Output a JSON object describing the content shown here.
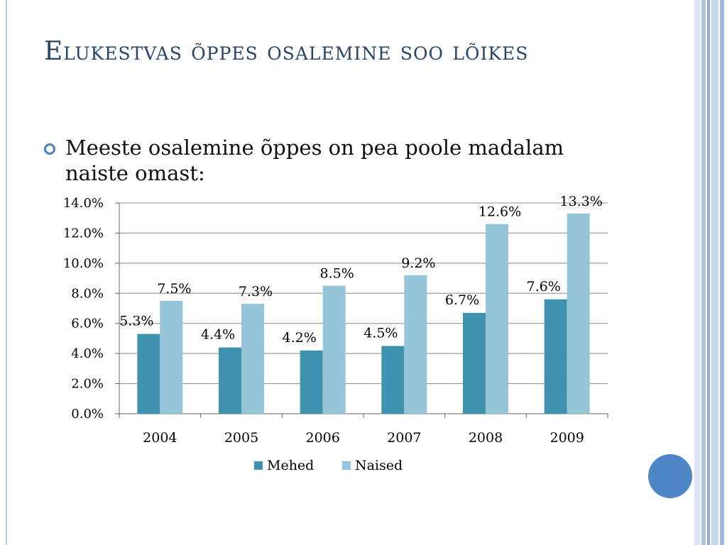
{
  "slide": {
    "title": "Elukestvas õppes osalemine soo lõikes",
    "bullet": "Meeste osalemine õppes on pea poole madalam naiste omast:"
  },
  "colors": {
    "mehed": "#3f93ae",
    "naised": "#96c5d9",
    "title": "#2a4466",
    "bullet": "#4a82c0",
    "circle": "#4f87c6"
  },
  "chart_data": {
    "type": "bar",
    "categories": [
      "2004",
      "2005",
      "2006",
      "2007",
      "2008",
      "2009"
    ],
    "series": [
      {
        "name": "Mehed",
        "values": [
          5.3,
          4.4,
          4.2,
          4.5,
          6.7,
          7.6
        ],
        "labels": [
          "5.3%",
          "4.4%",
          "4.2%",
          "4.5%",
          "6.7%",
          "7.6%"
        ]
      },
      {
        "name": "Naised",
        "values": [
          7.5,
          7.3,
          8.5,
          9.2,
          12.6,
          13.3
        ],
        "labels": [
          "7.5%",
          "7.3%",
          "8.5%",
          "9.2%",
          "12.6%",
          "13.3%"
        ]
      }
    ],
    "ylim": [
      0,
      14
    ],
    "yticks": [
      "0.0%",
      "2.0%",
      "4.0%",
      "6.0%",
      "8.0%",
      "10.0%",
      "12.0%",
      "14.0%"
    ],
    "grid": true,
    "legend_position": "bottom"
  }
}
